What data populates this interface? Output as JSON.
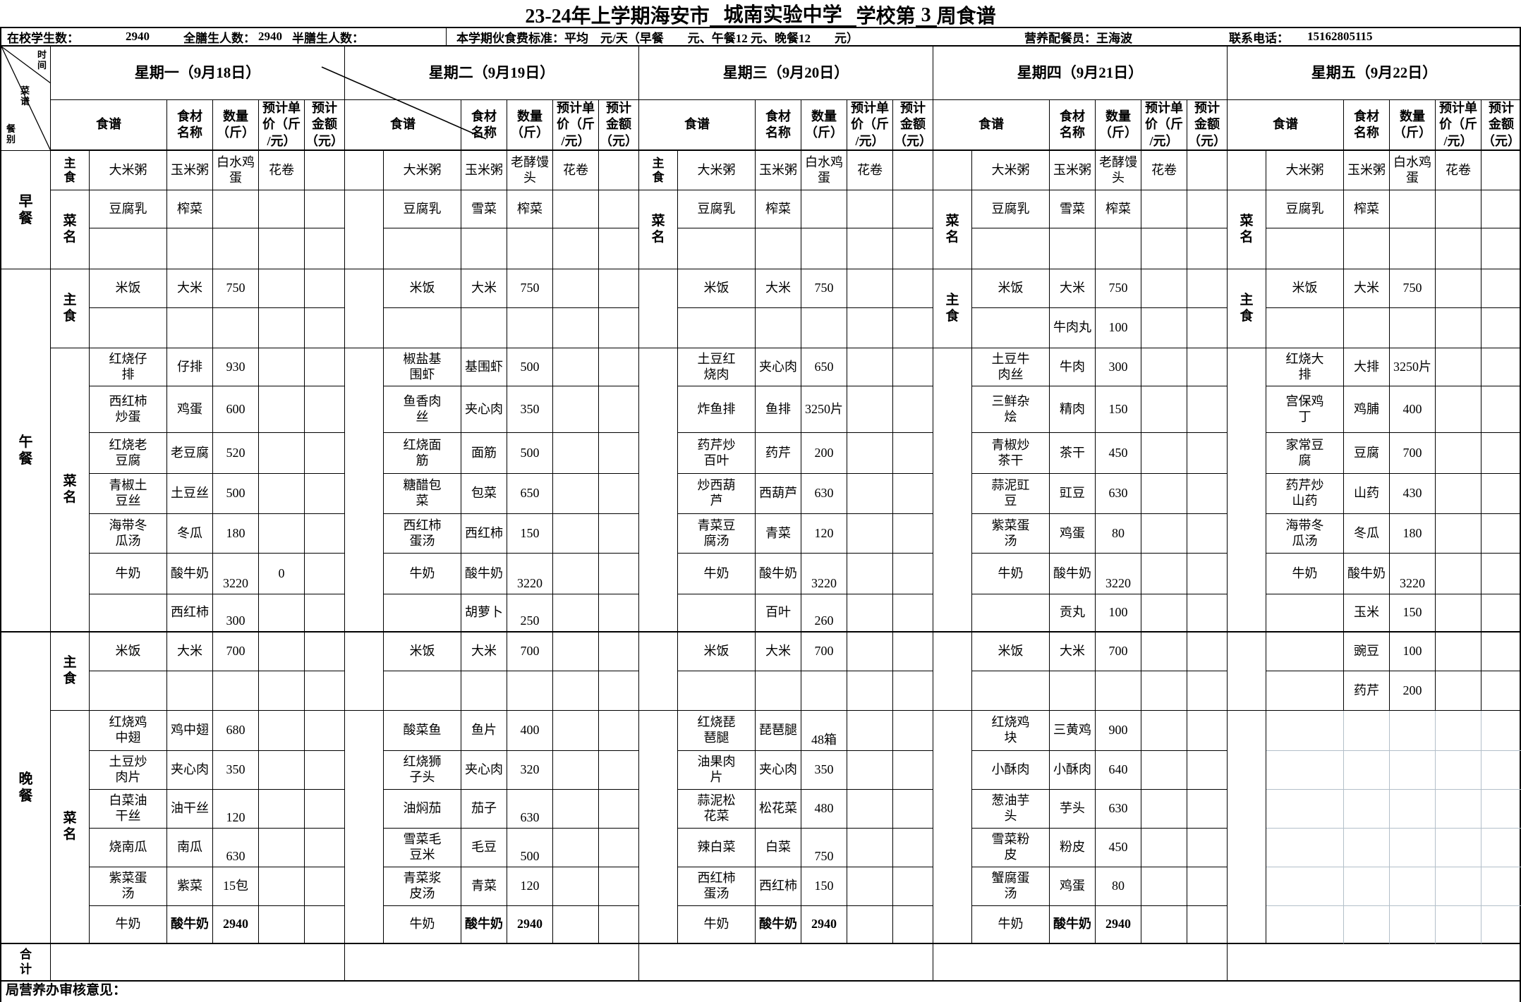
{
  "title": {
    "prefix": "23-24年上学期海安市",
    "school": "城南实验中学",
    "mid": "学校第",
    "week": "3",
    "suffix": "周食谱"
  },
  "info": {
    "onsite_label": "在校学生数：",
    "onsite_value": "2940",
    "full_board_label": "全膳生人数：",
    "full_board_value": "2940",
    "half_board_label": "半膳生人数：",
    "fee_standard": "本学期伙食费标准：平均　元/天（早餐　　元、午餐12 元、晚餐12　　元）",
    "dietitian_label": "营养配餐员：",
    "dietitian_name": "王海波",
    "phone_label": "联系电话：",
    "phone_number": "15162805115"
  },
  "corner": {
    "top": "时间",
    "mid": "菜谱",
    "bottom": "餐别"
  },
  "column_headers": [
    "食谱",
    "食材\n名称",
    "数量\n（斤）",
    "预计单\n价（斤\n/元）",
    "预计\n金额\n（元）"
  ],
  "section_labels": {
    "breakfast": "早餐",
    "lunch": "午餐",
    "dinner": "晚餐",
    "total": "合计"
  },
  "sublabels": {
    "staple": "主食",
    "dish": "菜名"
  },
  "review_label": "局营养办审核意见：",
  "days": [
    {
      "header": "星期一（9月18日）",
      "labels": [
        "bf1",
        "bf23",
        "lz",
        "ld",
        "dz",
        "dd"
      ],
      "breakfast": [
        [
          "大米粥",
          "玉米粥",
          "白水鸡蛋",
          "花卷",
          ""
        ],
        [
          "豆腐乳",
          "榨菜",
          "",
          "",
          ""
        ],
        [
          "",
          "",
          "",
          "",
          ""
        ]
      ],
      "lunch_staple": [
        [
          "米饭",
          "大米",
          "750",
          "",
          ""
        ],
        [
          "",
          "",
          "",
          "",
          ""
        ]
      ],
      "lunch_dishes": [
        [
          "红烧仔排",
          "仔排",
          "930",
          "",
          ""
        ],
        [
          "西红柿炒蛋",
          "鸡蛋",
          "600",
          "",
          ""
        ],
        [
          "红烧老豆腐",
          "老豆腐",
          "520",
          "",
          ""
        ],
        [
          "青椒土豆丝",
          "土豆丝",
          "500",
          "",
          ""
        ],
        [
          "海带冬瓜汤",
          "冬瓜",
          "180",
          "",
          ""
        ],
        [
          "牛奶",
          "酸牛奶",
          {
            "v": "3220",
            "low": true
          },
          "0",
          ""
        ],
        [
          "",
          "西红柿",
          {
            "v": "300",
            "low": true
          },
          "",
          ""
        ]
      ],
      "dinner_staple": [
        [
          "米饭",
          "大米",
          "700",
          "",
          ""
        ],
        [
          "",
          "",
          "",
          "",
          ""
        ]
      ],
      "dinner_dishes": [
        [
          "红烧鸡中翅",
          "鸡中翅",
          "680",
          "",
          ""
        ],
        [
          "土豆炒肉片",
          "夹心肉",
          "350",
          "",
          ""
        ],
        [
          "白菜油干丝",
          "油干丝",
          {
            "v": "120",
            "low": true
          },
          "",
          ""
        ],
        [
          "烧南瓜",
          "南瓜",
          {
            "v": "630",
            "low": true
          },
          "",
          ""
        ],
        [
          "紫菜蛋汤",
          "紫菜",
          "15包",
          "",
          ""
        ],
        [
          "牛奶",
          {
            "v": "酸牛奶",
            "bold": true
          },
          {
            "v": "2940",
            "bold": true
          },
          "",
          ""
        ]
      ]
    },
    {
      "header": "星期二（9月19日）",
      "labels": [],
      "breakfast": [
        [
          "大米粥",
          "玉米粥",
          "老酵馒头",
          "花卷",
          ""
        ],
        [
          "豆腐乳",
          "雪菜",
          "榨菜",
          "",
          ""
        ],
        [
          "",
          "",
          "",
          "",
          ""
        ]
      ],
      "lunch_staple": [
        [
          "米饭",
          "大米",
          "750",
          "",
          ""
        ],
        [
          "",
          "",
          "",
          "",
          ""
        ]
      ],
      "lunch_dishes": [
        [
          "椒盐基围虾",
          "基围虾",
          "500",
          "",
          ""
        ],
        [
          "鱼香肉丝",
          "夹心肉",
          "350",
          "",
          ""
        ],
        [
          "红烧面筋",
          "面筋",
          "500",
          "",
          ""
        ],
        [
          "糖醋包菜",
          "包菜",
          "650",
          "",
          ""
        ],
        [
          "西红柿蛋汤",
          "西红柿",
          "150",
          "",
          ""
        ],
        [
          "牛奶",
          "酸牛奶",
          {
            "v": "3220",
            "low": true
          },
          "",
          ""
        ],
        [
          "",
          "胡萝卜",
          {
            "v": "250",
            "low": true
          },
          "",
          ""
        ]
      ],
      "dinner_staple": [
        [
          "米饭",
          "大米",
          "700",
          "",
          ""
        ],
        [
          "",
          "",
          "",
          "",
          ""
        ]
      ],
      "dinner_dishes": [
        [
          "酸菜鱼",
          "鱼片",
          "400",
          "",
          ""
        ],
        [
          "红烧狮子头",
          "夹心肉",
          "320",
          "",
          ""
        ],
        [
          "油焖茄",
          "茄子",
          {
            "v": "630",
            "low": true
          },
          "",
          ""
        ],
        [
          "雪菜毛豆米",
          "毛豆",
          {
            "v": "500",
            "low": true
          },
          "",
          ""
        ],
        [
          "青菜浆皮汤",
          "青菜",
          "120",
          "",
          ""
        ],
        [
          "牛奶",
          {
            "v": "酸牛奶",
            "bold": true
          },
          {
            "v": "2940",
            "bold": true
          },
          "",
          ""
        ]
      ]
    },
    {
      "header": "星期三（9月20日）",
      "labels": [
        "bf1",
        "bf23"
      ],
      "breakfast": [
        [
          "大米粥",
          "玉米粥",
          "白水鸡蛋",
          "花卷",
          ""
        ],
        [
          "豆腐乳",
          "榨菜",
          "",
          "",
          ""
        ],
        [
          "",
          "",
          "",
          "",
          ""
        ]
      ],
      "lunch_staple": [
        [
          "米饭",
          "大米",
          "750",
          "",
          ""
        ],
        [
          "",
          "",
          "",
          "",
          ""
        ]
      ],
      "lunch_dishes": [
        [
          "土豆红烧肉",
          "夹心肉",
          "650",
          "",
          ""
        ],
        [
          "炸鱼排",
          "鱼排",
          "3250片",
          "",
          ""
        ],
        [
          "药芹炒百叶",
          "药芹",
          "200",
          "",
          ""
        ],
        [
          "炒西葫芦",
          "西葫芦",
          "630",
          "",
          ""
        ],
        [
          "青菜豆腐汤",
          "青菜",
          "120",
          "",
          ""
        ],
        [
          "牛奶",
          "酸牛奶",
          {
            "v": "3220",
            "low": true
          },
          "",
          ""
        ],
        [
          "",
          "百叶",
          {
            "v": "260",
            "low": true
          },
          "",
          ""
        ]
      ],
      "dinner_staple": [
        [
          "米饭",
          "大米",
          "700",
          "",
          ""
        ],
        [
          "",
          "",
          "",
          "",
          ""
        ]
      ],
      "dinner_dishes": [
        [
          "红烧琵琶腿",
          "琵琶腿",
          {
            "v": "48箱",
            "low": true
          },
          "",
          ""
        ],
        [
          "油果肉片",
          "夹心肉",
          "350",
          "",
          ""
        ],
        [
          "蒜泥松花菜",
          "松花菜",
          "480",
          "",
          ""
        ],
        [
          "辣白菜",
          "白菜",
          {
            "v": "750",
            "low": true
          },
          "",
          ""
        ],
        [
          "西红柿蛋汤",
          "西红柿",
          "150",
          "",
          ""
        ],
        [
          "牛奶",
          {
            "v": "酸牛奶",
            "bold": true
          },
          {
            "v": "2940",
            "bold": true
          },
          "",
          ""
        ]
      ]
    },
    {
      "header": "星期四（9月21日）",
      "labels": [
        "bf23",
        "lz"
      ],
      "breakfast": [
        [
          "大米粥",
          "玉米粥",
          "老酵馒头",
          "花卷",
          ""
        ],
        [
          "豆腐乳",
          "雪菜",
          "榨菜",
          "",
          ""
        ],
        [
          "",
          "",
          "",
          "",
          ""
        ]
      ],
      "lunch_staple": [
        [
          "米饭",
          "大米",
          "750",
          "",
          ""
        ],
        [
          "",
          "牛肉丸",
          "100",
          "",
          ""
        ]
      ],
      "lunch_dishes": [
        [
          "土豆牛肉丝",
          "牛肉",
          "300",
          "",
          ""
        ],
        [
          "三鲜杂烩",
          "精肉",
          "150",
          "",
          ""
        ],
        [
          "青椒炒茶干",
          "茶干",
          "450",
          "",
          ""
        ],
        [
          "蒜泥豇豆",
          "豇豆",
          "630",
          "",
          ""
        ],
        [
          "紫菜蛋汤",
          "鸡蛋",
          "80",
          "",
          ""
        ],
        [
          "牛奶",
          "酸牛奶",
          {
            "v": "3220",
            "low": true
          },
          "",
          ""
        ],
        [
          "",
          "贡丸",
          "100",
          "",
          ""
        ]
      ],
      "dinner_staple": [
        [
          "米饭",
          "大米",
          "700",
          "",
          ""
        ],
        [
          "",
          "",
          "",
          "",
          ""
        ]
      ],
      "dinner_dishes": [
        [
          "红烧鸡块",
          "三黄鸡",
          "900",
          "",
          ""
        ],
        [
          "小酥肉",
          "小酥肉",
          "640",
          "",
          ""
        ],
        [
          "葱油芋头",
          "芋头",
          "630",
          "",
          ""
        ],
        [
          "雪菜粉皮",
          "粉皮",
          "450",
          "",
          ""
        ],
        [
          "蟹腐蛋汤",
          "鸡蛋",
          "80",
          "",
          ""
        ],
        [
          "牛奶",
          {
            "v": "酸牛奶",
            "bold": true
          },
          {
            "v": "2940",
            "bold": true
          },
          "",
          ""
        ]
      ]
    },
    {
      "header": "星期五（9月22日）",
      "labels": [
        "bf23",
        "lz"
      ],
      "gray_dinner": true,
      "breakfast": [
        [
          "大米粥",
          "玉米粥",
          "白水鸡蛋",
          "花卷",
          ""
        ],
        [
          "豆腐乳",
          "榨菜",
          "",
          "",
          ""
        ],
        [
          "",
          "",
          "",
          "",
          ""
        ]
      ],
      "lunch_staple": [
        [
          "米饭",
          "大米",
          "750",
          "",
          ""
        ],
        [
          "",
          "",
          "",
          "",
          ""
        ]
      ],
      "lunch_dishes": [
        [
          "红烧大排",
          "大排",
          "3250片",
          "",
          ""
        ],
        [
          "宫保鸡丁",
          "鸡脯",
          "400",
          "",
          ""
        ],
        [
          "家常豆腐",
          "豆腐",
          "700",
          "",
          ""
        ],
        [
          "药芹炒山药",
          "山药",
          "430",
          "",
          ""
        ],
        [
          "海带冬瓜汤",
          "冬瓜",
          "180",
          "",
          ""
        ],
        [
          "牛奶",
          "酸牛奶",
          {
            "v": "3220",
            "low": true
          },
          "",
          ""
        ],
        [
          "",
          "玉米",
          "150",
          "",
          ""
        ]
      ],
      "dinner_staple": [
        [
          "",
          "豌豆",
          "100",
          "",
          ""
        ],
        [
          "",
          "药芹",
          "200",
          "",
          ""
        ]
      ],
      "dinner_dishes": [
        [
          "",
          "",
          "",
          "",
          ""
        ],
        [
          "",
          "",
          "",
          "",
          ""
        ],
        [
          "",
          "",
          "",
          "",
          ""
        ],
        [
          "",
          "",
          "",
          "",
          ""
        ],
        [
          "",
          "",
          "",
          "",
          ""
        ],
        [
          "",
          "",
          "",
          "",
          ""
        ]
      ]
    }
  ]
}
